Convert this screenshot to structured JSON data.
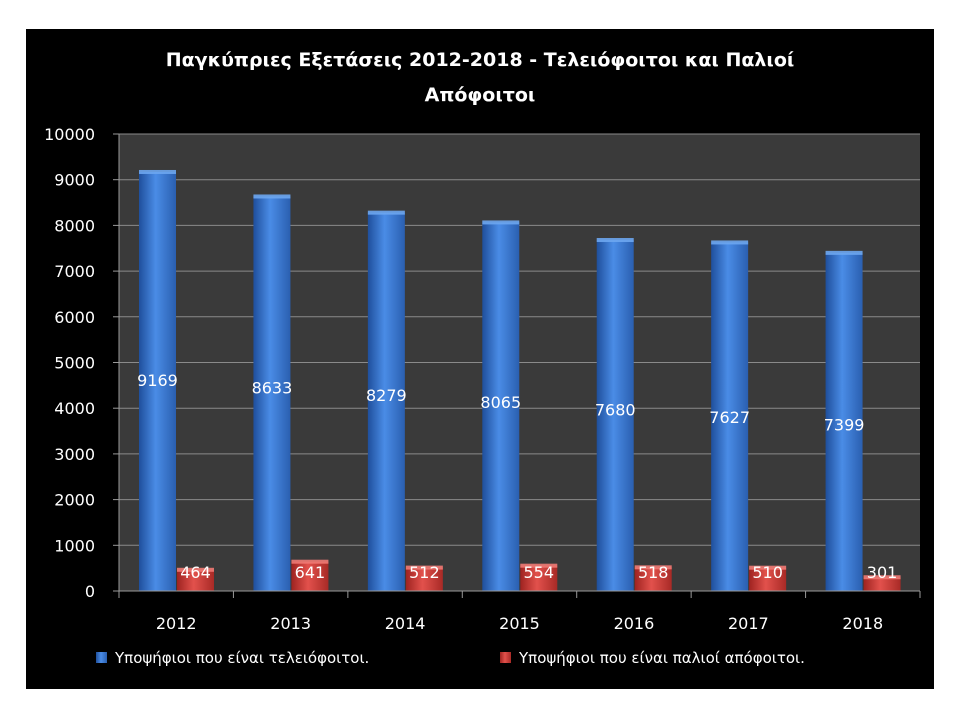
{
  "chart_data": {
    "type": "bar",
    "title": "Παγκύπριες Εξετάσεις 2012-2018 - Τελειόφοιτοι και Παλιοί Απόφοιτοι",
    "title_lines": [
      "Παγκύπριες Εξετάσεις 2012-2018 - Τελειόφοιτοι και Παλιοί",
      "Απόφοιτοι"
    ],
    "categories": [
      "2012",
      "2013",
      "2014",
      "2015",
      "2016",
      "2017",
      "2018"
    ],
    "series": [
      {
        "name": "Υποψήφιοι που είναι τελειόφοιτοι.",
        "values": [
          9169,
          8633,
          8279,
          8065,
          7680,
          7627,
          7399
        ],
        "color": "#3a78d4"
      },
      {
        "name": "Υποψήφιοι που είναι παλιοί απόφοιτοι.",
        "values": [
          464,
          641,
          512,
          554,
          518,
          510,
          301
        ],
        "color": "#d03a36"
      }
    ],
    "ylim": [
      0,
      10000
    ],
    "yticks": [
      0,
      1000,
      2000,
      3000,
      4000,
      5000,
      6000,
      7000,
      8000,
      9000,
      10000
    ],
    "grid": true,
    "legend_position": "bottom",
    "background": "#000000",
    "plot_area_color": "#3a3a3a"
  }
}
